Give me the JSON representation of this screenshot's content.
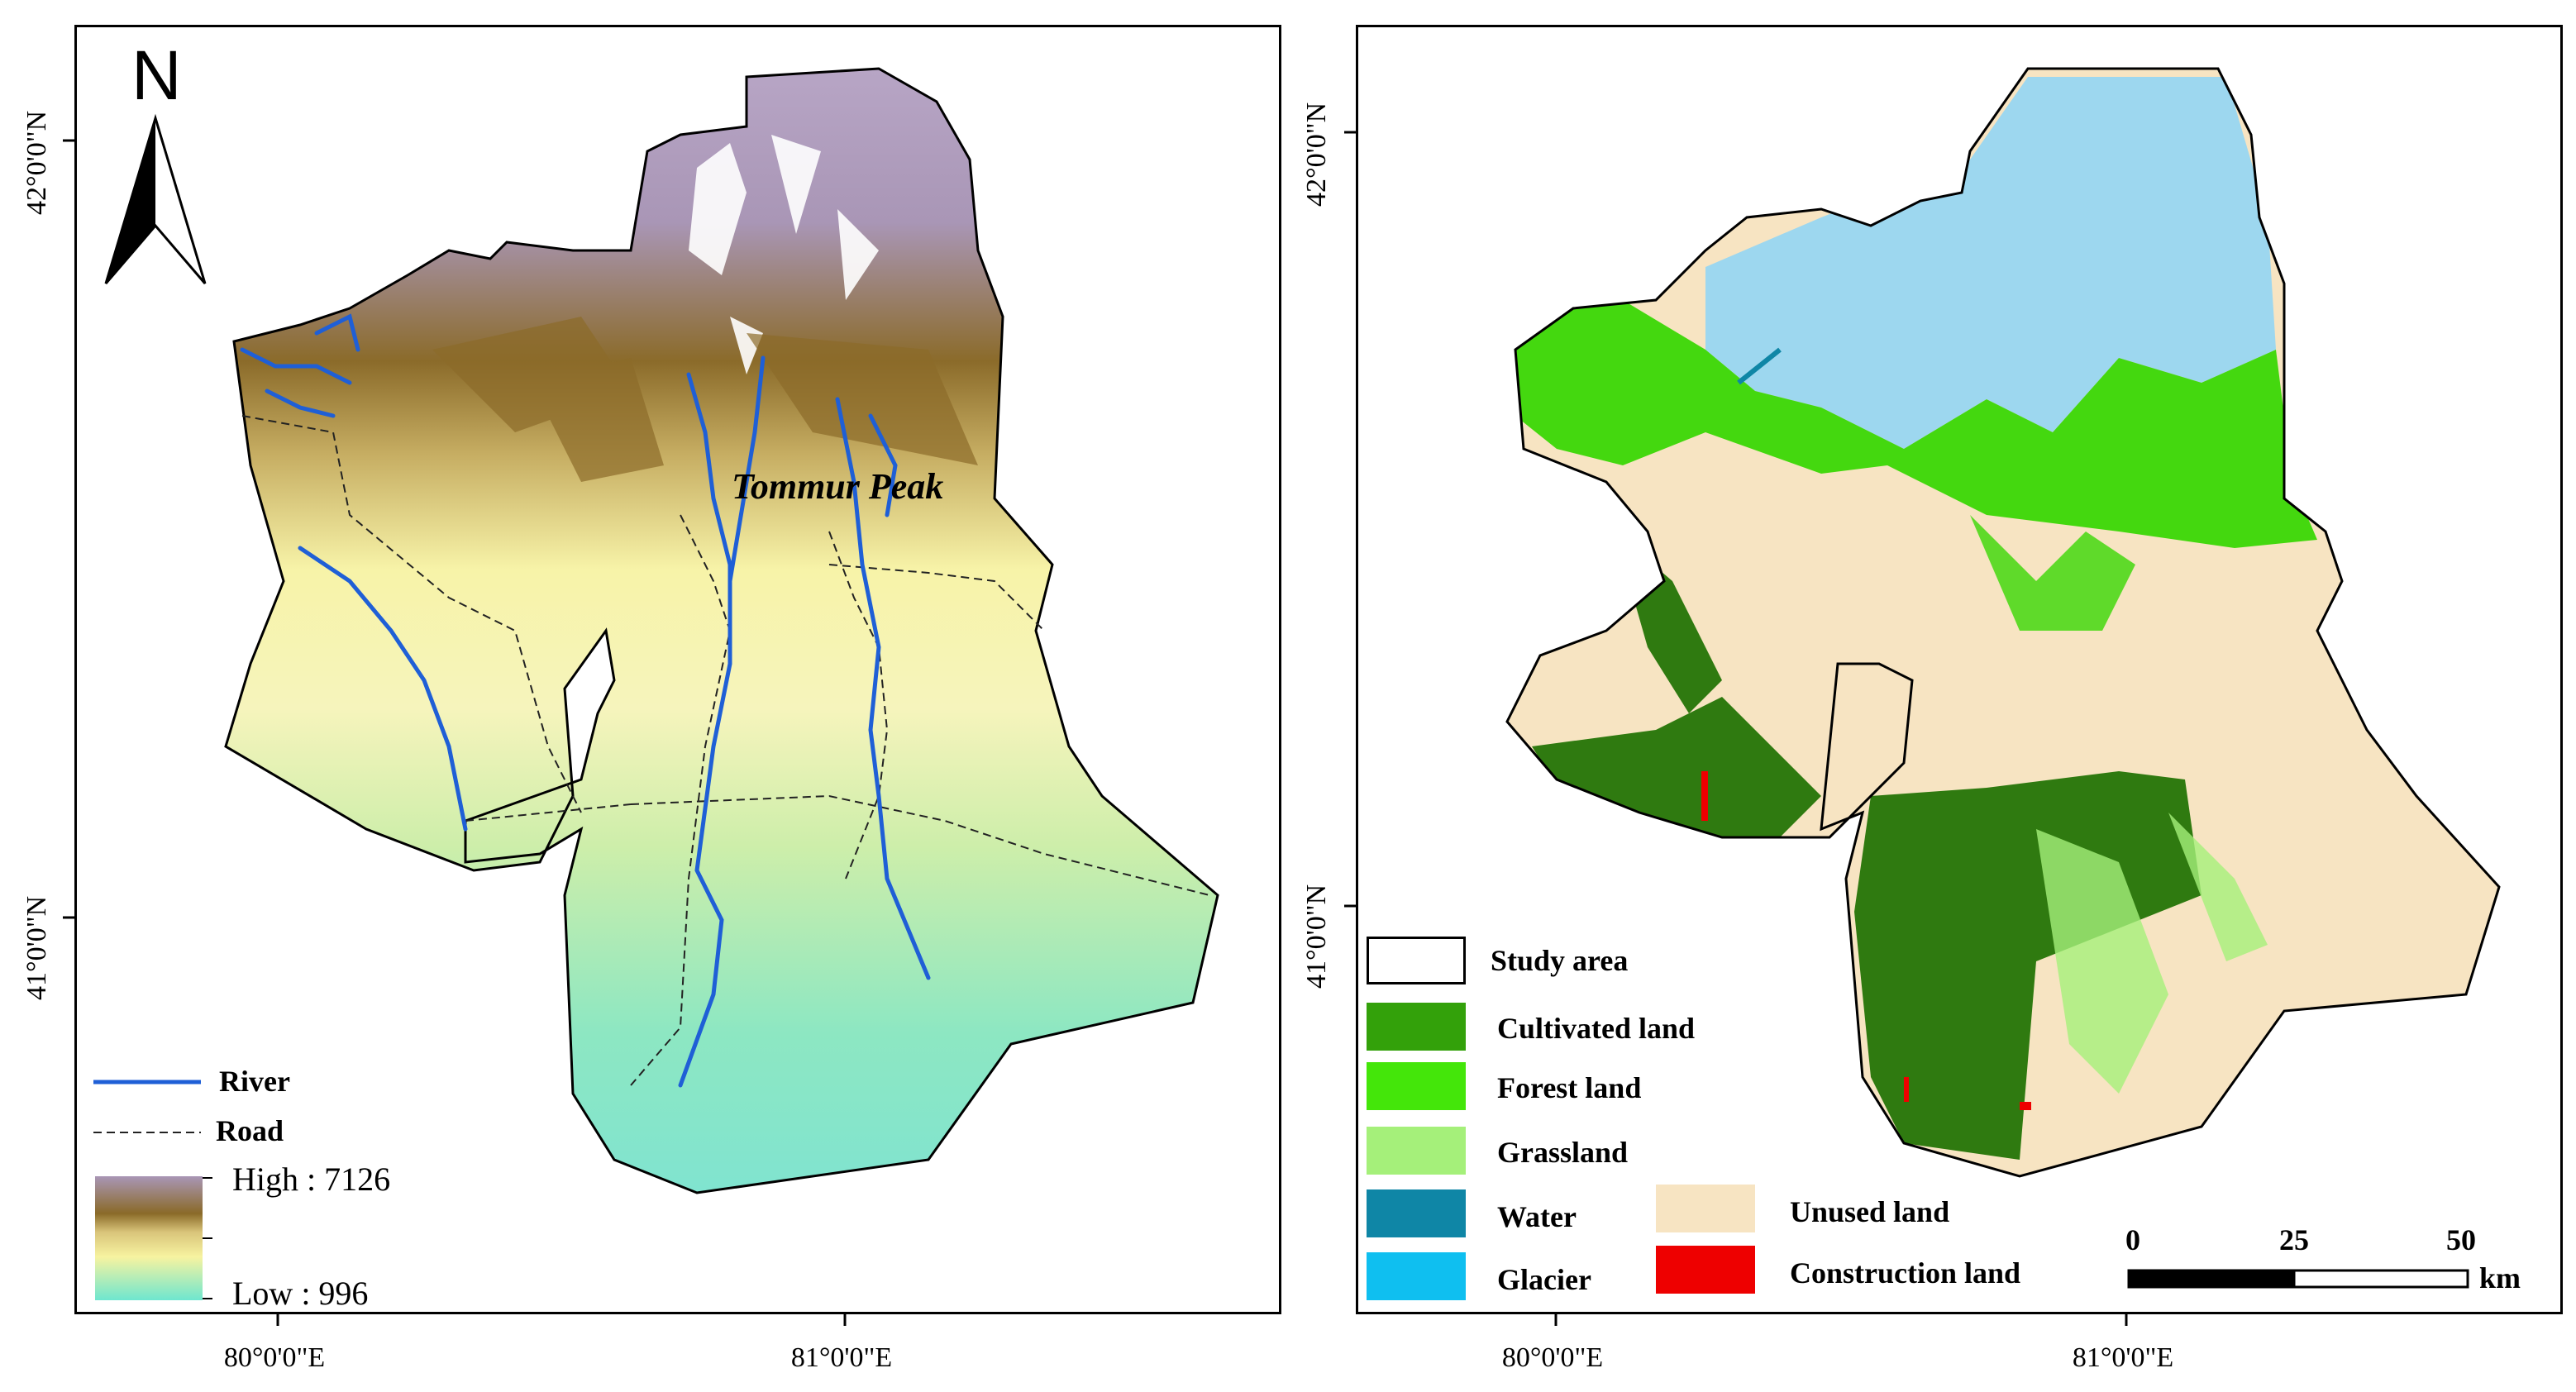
{
  "left_map": {
    "north_label": "N",
    "peak_label": "Tommur Peak",
    "legend": {
      "river": "River",
      "road": "Road",
      "high": "High : 7126",
      "low": "Low : 996"
    },
    "axis_x": [
      "80°0'0\"E",
      "81°0'0\"E"
    ],
    "axis_y": [
      "42°0'0\"N",
      "41°0'0\"N"
    ],
    "colors": {
      "river": "#1f5fd6",
      "high_elev": "#a996b6",
      "mid_elev": "#8a6a28",
      "low_elev": "#7ee6cf",
      "lowland_yellow": "#f7f3a8"
    }
  },
  "right_map": {
    "legend": [
      {
        "label": "Study area",
        "color": "#ffffff"
      },
      {
        "label": "Cultivated land",
        "color": "#33a10a"
      },
      {
        "label": "Forest land",
        "color": "#44e60a"
      },
      {
        "label": "Grassland",
        "color": "#a5f07a"
      },
      {
        "label": "Water",
        "color": "#0f86a6"
      },
      {
        "label": "Glacier",
        "color": "#0fbff0"
      },
      {
        "label": "Unused land",
        "color": "#f7e4c2"
      },
      {
        "label": "Construction land",
        "color": "#ee0000"
      }
    ],
    "scale": {
      "ticks": [
        "0",
        "25",
        "50"
      ],
      "unit": "km"
    },
    "axis_x": [
      "80°0'0\"E",
      "81°0'0\"E"
    ],
    "axis_y": [
      "42°0'0\"N",
      "41°0'0\"N"
    ],
    "colors": {
      "glacier_map": "#9dd7ef",
      "unused_map": "#f7e4c2",
      "cultivated_map": "#2f7a10",
      "forest_map": "#44d80f"
    }
  }
}
